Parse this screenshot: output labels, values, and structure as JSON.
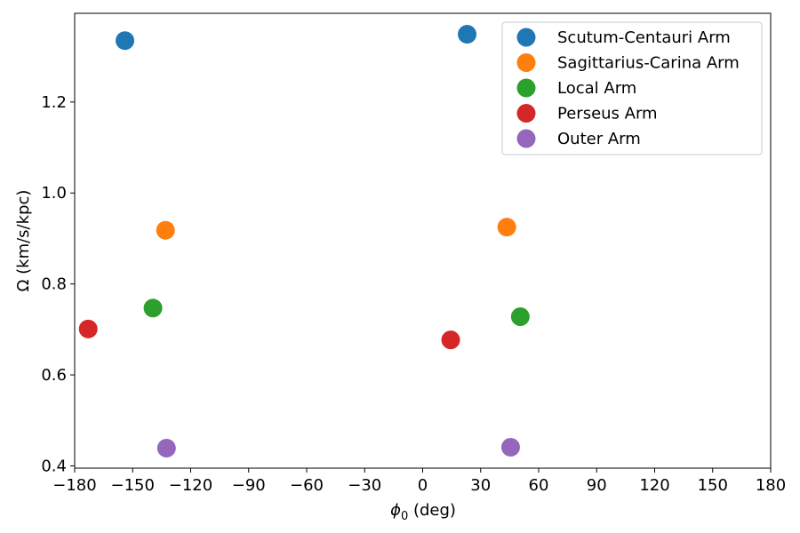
{
  "chart_data": {
    "type": "scatter",
    "title": "",
    "xlabel_main": "ϕ",
    "xlabel_sub": "0",
    "xlabel_rest": " (deg)",
    "ylabel": "Ω (km/s/kpc)",
    "xlim": [
      -180,
      180
    ],
    "ylim": [
      0.395,
      1.395
    ],
    "xticks": [
      -180,
      -150,
      -120,
      -90,
      -60,
      -30,
      0,
      30,
      60,
      90,
      120,
      150,
      180
    ],
    "xtick_labels": [
      "−180",
      "−150",
      "−120",
      "−90",
      "−60",
      "−30",
      "0",
      "30",
      "60",
      "90",
      "120",
      "150",
      "180"
    ],
    "yticks": [
      0.4,
      0.6,
      0.8,
      1.0,
      1.2
    ],
    "ytick_labels": [
      "0.4",
      "0.6",
      "0.8",
      "1.0",
      "1.2"
    ],
    "grid": false,
    "legend_position": "top-right",
    "series": [
      {
        "name": "Scutum-Centauri Arm",
        "color": "#1f77b4",
        "points": [
          [
            -154,
            1.335
          ],
          [
            23,
            1.349
          ]
        ]
      },
      {
        "name": "Sagittarius-Carina Arm",
        "color": "#ff7f0e",
        "points": [
          [
            -133,
            0.918
          ],
          [
            43.5,
            0.925
          ]
        ]
      },
      {
        "name": "Local Arm",
        "color": "#2ca02c",
        "points": [
          [
            -139.5,
            0.747
          ],
          [
            50.5,
            0.728
          ]
        ]
      },
      {
        "name": "Perseus Arm",
        "color": "#d62728",
        "points": [
          [
            -173,
            0.701
          ],
          [
            14.5,
            0.677
          ]
        ]
      },
      {
        "name": "Outer Arm",
        "color": "#9467bd",
        "points": [
          [
            -132.5,
            0.439
          ],
          [
            45.5,
            0.441
          ]
        ]
      }
    ]
  }
}
